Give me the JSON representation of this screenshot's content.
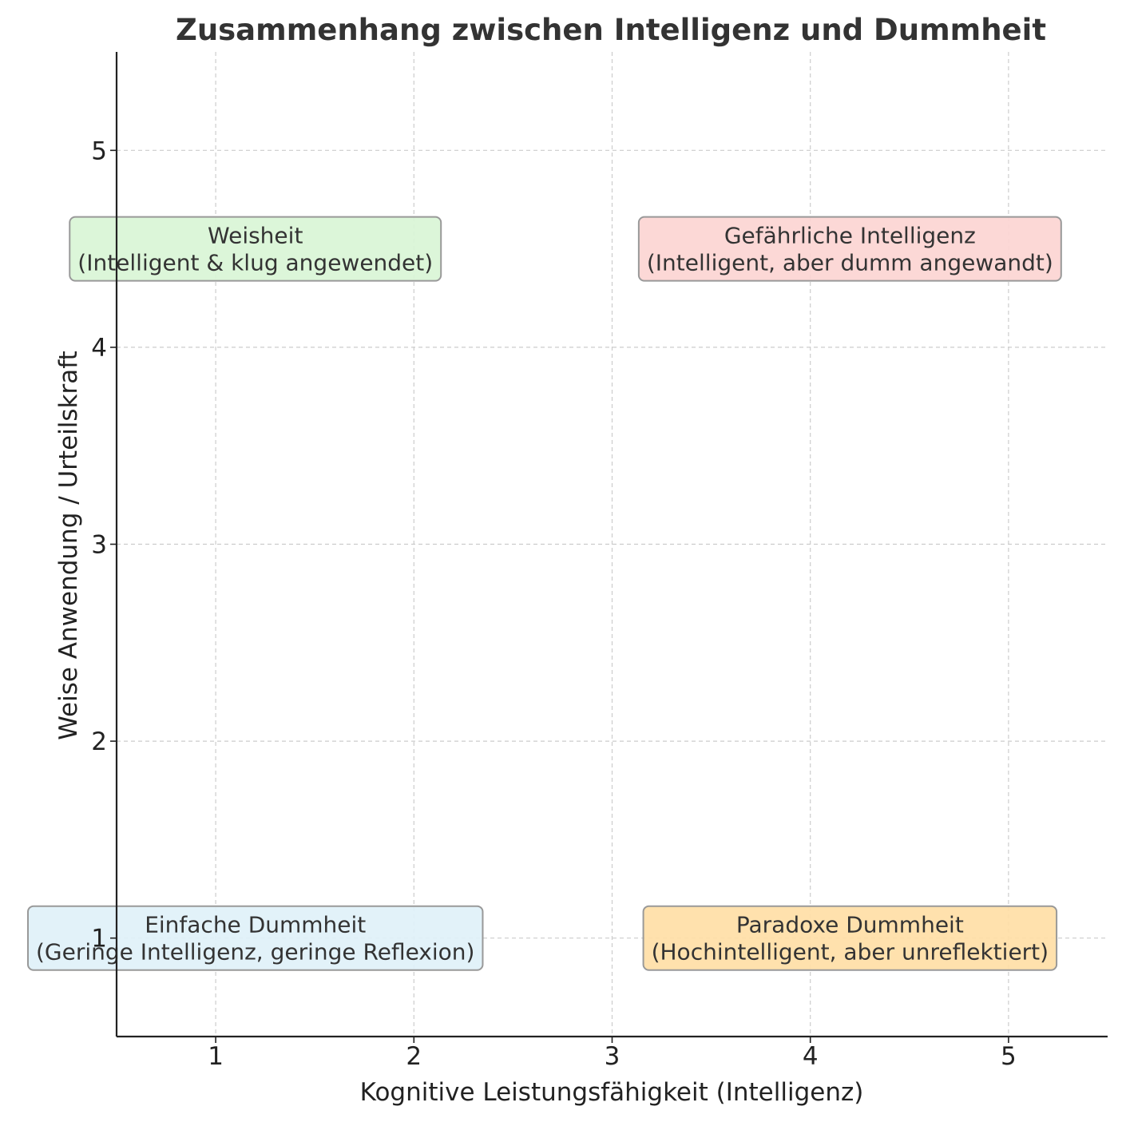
{
  "chart_data": {
    "type": "scatter",
    "title": "Zusammenhang zwischen Intelligenz und Dummheit",
    "xlabel": "Kognitive Leistungsfähigkeit (Intelligenz)",
    "ylabel": "Weise Anwendung / Urteilskraft",
    "xlim": [
      0.5,
      5.5
    ],
    "ylim": [
      0.5,
      5.5
    ],
    "xticks": [
      1,
      2,
      3,
      4,
      5
    ],
    "yticks": [
      1,
      2,
      3,
      4,
      5
    ],
    "grid": true,
    "annotations": [
      {
        "x": 1.2,
        "y": 4.5,
        "lines": [
          "Weisheit",
          "(Intelligent & klug angewendet)"
        ],
        "color": "#d9f5d6"
      },
      {
        "x": 4.2,
        "y": 4.5,
        "lines": [
          "Gefährliche Intelligenz",
          "(Intelligent, aber dumm angewandt)"
        ],
        "color": "#fcd5d3"
      },
      {
        "x": 1.2,
        "y": 1.0,
        "lines": [
          "Einfache Dummheit",
          "(Geringe Intelligenz, geringe Reflexion)"
        ],
        "color": "#e0f1f8"
      },
      {
        "x": 4.2,
        "y": 1.0,
        "lines": [
          "Paradoxe Dummheit",
          "(Hochintelligent, aber unreflektiert)"
        ],
        "color": "#ffdea6"
      }
    ]
  }
}
